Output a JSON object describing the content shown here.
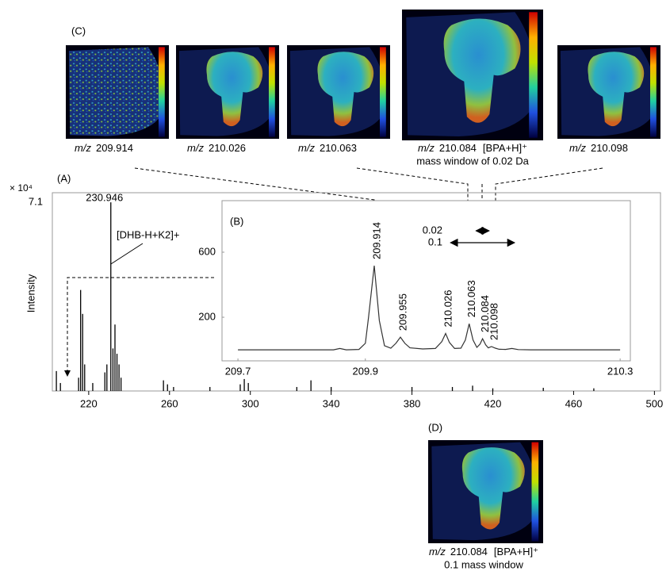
{
  "panel_labels": {
    "a": "(A)",
    "b": "(B)",
    "c": "(C)",
    "d": "(D)"
  },
  "images": [
    {
      "prefix": "m/z",
      "mz": "209.914"
    },
    {
      "prefix": "m/z",
      "mz": "210.026"
    },
    {
      "prefix": "m/z",
      "mz": "210.063"
    },
    {
      "prefix": "m/z",
      "mz": "210.084",
      "ion": "[BPA+H]⁺",
      "note": "mass window of 0.02 Da"
    },
    {
      "prefix": "m/z",
      "mz": "210.098"
    }
  ],
  "image_d": {
    "prefix": "m/z",
    "mz": "210.084",
    "ion": "[BPA+H]⁺",
    "note": "0.1 mass window"
  },
  "chart_data": [
    {
      "type": "spectrum",
      "y_label": "Intensity",
      "scale_label": "× 10⁴",
      "color": "#000000",
      "x": [
        204,
        206,
        215,
        216,
        217,
        218,
        222,
        228,
        229,
        230.946,
        232,
        233,
        234,
        235,
        236,
        257,
        259,
        262,
        280,
        295,
        297,
        299,
        323,
        330,
        340,
        380,
        400,
        410,
        420,
        445,
        470
      ],
      "values": [
        0.75,
        0.3,
        0.5,
        3.8,
        2.9,
        1.0,
        0.3,
        0.7,
        1.0,
        7.1,
        1.6,
        2.5,
        1.4,
        1.0,
        0.5,
        0.4,
        0.25,
        0.15,
        0.15,
        0.25,
        0.45,
        0.3,
        0.15,
        0.4,
        0.15,
        0.15,
        0.15,
        0.2,
        0.1,
        0.12,
        0.1
      ],
      "xlim": [
        202,
        503
      ],
      "ylim": [
        0,
        7.46
      ],
      "xticks": [
        220,
        260,
        300,
        340,
        380,
        420,
        460,
        500
      ],
      "yticks": [
        7.1
      ],
      "peak_labels": [
        230.946
      ],
      "annotation": "[DHB-H+K2]+"
    },
    {
      "type": "line",
      "color": "#333333",
      "x": [
        209.7,
        209.8,
        209.85,
        209.86,
        209.87,
        209.89,
        209.9,
        209.905,
        209.914,
        209.922,
        209.93,
        209.94,
        209.948,
        209.955,
        209.962,
        209.97,
        209.99,
        210.01,
        210.02,
        210.026,
        210.032,
        210.04,
        210.05,
        210.057,
        210.063,
        210.069,
        210.075,
        210.08,
        210.084,
        210.089,
        210.093,
        210.098,
        210.104,
        210.11,
        210.12,
        210.13,
        210.14,
        210.16,
        210.3
      ],
      "values": [
        0,
        0,
        0,
        8,
        0,
        2,
        40,
        200,
        517,
        180,
        25,
        10,
        40,
        78,
        40,
        12,
        5,
        8,
        50,
        100,
        45,
        8,
        10,
        60,
        160,
        60,
        15,
        35,
        68,
        30,
        12,
        20,
        10,
        3,
        2,
        8,
        1,
        0,
        0
      ],
      "xlim": [
        209.675,
        210.316
      ],
      "ylim": [
        -68,
        917
      ],
      "xticks": [
        209.7,
        209.9,
        210.3
      ],
      "yticks": [
        200,
        600
      ],
      "peak_labels": [
        209.914,
        209.955,
        210.026,
        210.063,
        210.084,
        210.098
      ],
      "peak_label_colors": [
        "#000000",
        "#000000",
        "#000000",
        "#000000",
        "#e00000",
        "#000000"
      ],
      "windows": [
        {
          "center": 210.084,
          "width": 0.02
        },
        {
          "center": 210.084,
          "width": 0.1
        }
      ]
    }
  ]
}
